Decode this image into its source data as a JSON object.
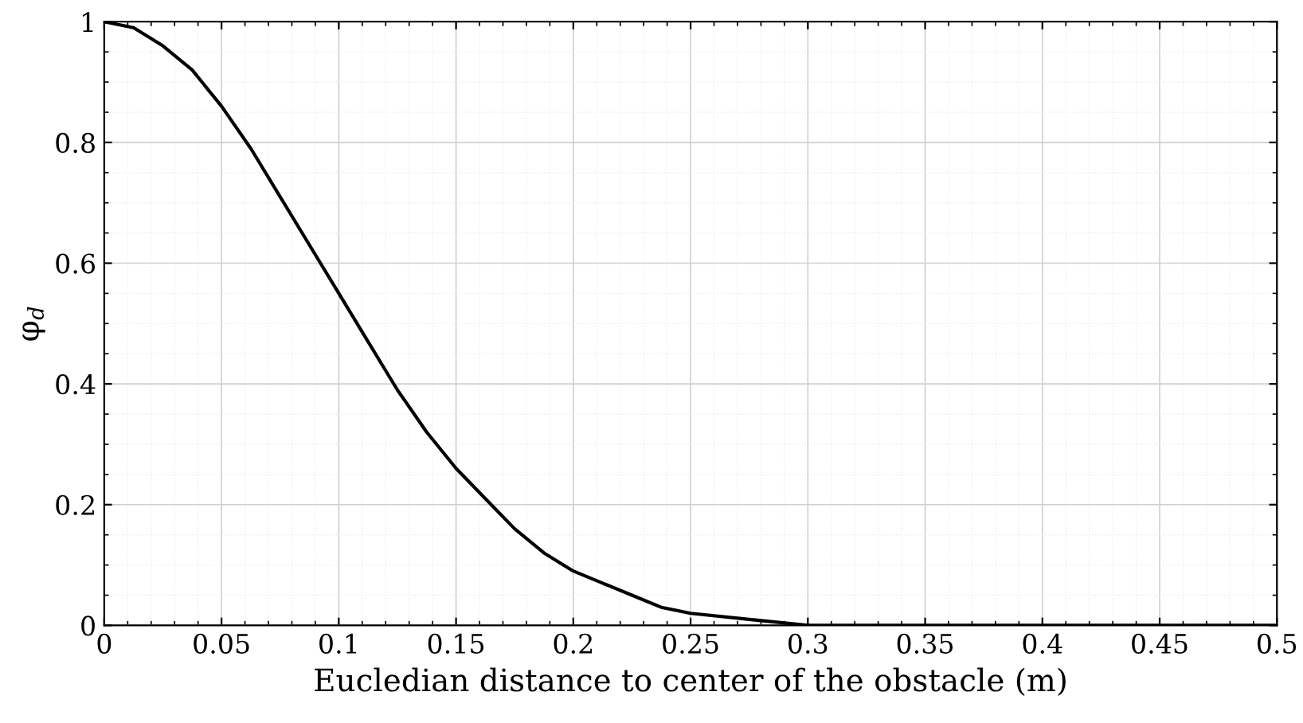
{
  "chart_data": {
    "type": "line",
    "xlabel": "Eucledian distance to center of the obstacle (m)",
    "ylabel": "φ$_{d}$",
    "x": [
      0,
      0.0125,
      0.025,
      0.0375,
      0.05,
      0.0625,
      0.075,
      0.0875,
      0.1,
      0.1125,
      0.125,
      0.1375,
      0.15,
      0.1625,
      0.175,
      0.1875,
      0.2,
      0.2125,
      0.225,
      0.2375,
      0.25,
      0.275,
      0.3,
      0.4,
      0.5
    ],
    "series": [
      {
        "color": "#000000",
        "values": [
          1.0,
          0.99,
          0.96,
          0.92,
          0.86,
          0.79,
          0.71,
          0.63,
          0.55,
          0.47,
          0.39,
          0.32,
          0.26,
          0.21,
          0.16,
          0.12,
          0.09,
          0.07,
          0.05,
          0.03,
          0.02,
          0.01,
          0.0,
          0.0,
          0.0
        ]
      }
    ],
    "xlim": [
      0,
      0.5
    ],
    "xticks": [
      0,
      0.05,
      0.1,
      0.15,
      0.2,
      0.25,
      0.3,
      0.35,
      0.4,
      0.45,
      0.5
    ],
    "ylim": [
      0,
      1
    ],
    "yticks": [
      0,
      0.2,
      0.4,
      0.6,
      0.8,
      1
    ],
    "grid": true,
    "line_style": "solid"
  }
}
